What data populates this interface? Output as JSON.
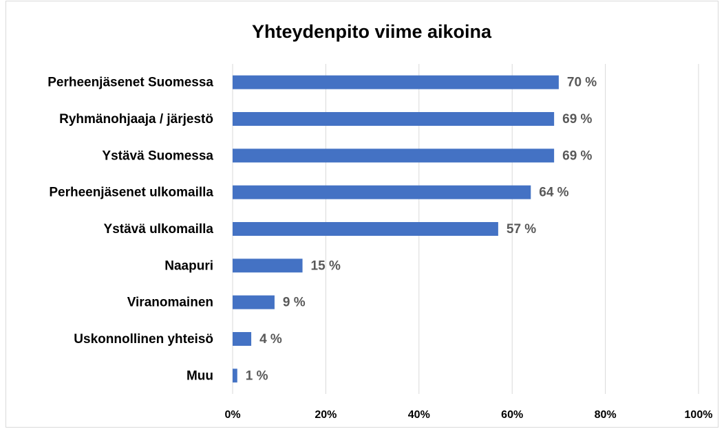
{
  "chart_data": {
    "type": "bar",
    "orientation": "horizontal",
    "title": "Yhteydenpito viime aikoina",
    "categories": [
      "Perheenjäsenet Suomessa",
      "Ryhmänohjaaja / järjestö",
      "Ystävä Suomessa",
      "Perheenjäsenet ulkomailla",
      "Ystävä ulkomailla",
      "Naapuri",
      "Viranomainen",
      "Uskonnollinen yhteisö",
      "Muu"
    ],
    "values": [
      70,
      69,
      69,
      64,
      57,
      15,
      9,
      4,
      1
    ],
    "value_labels": [
      "70 %",
      "69 %",
      "69 %",
      "64 %",
      "57 %",
      "15 %",
      "9 %",
      "4 %",
      "1 %"
    ],
    "color": "#4472c4",
    "xlim": [
      0,
      100
    ],
    "xticks": [
      {
        "value": 0,
        "label": "0%"
      },
      {
        "value": 20,
        "label": "20%"
      },
      {
        "value": 40,
        "label": "40%"
      },
      {
        "value": 60,
        "label": "60%"
      },
      {
        "value": 80,
        "label": "80%"
      },
      {
        "value": 100,
        "label": "100%"
      }
    ],
    "grid": true
  }
}
